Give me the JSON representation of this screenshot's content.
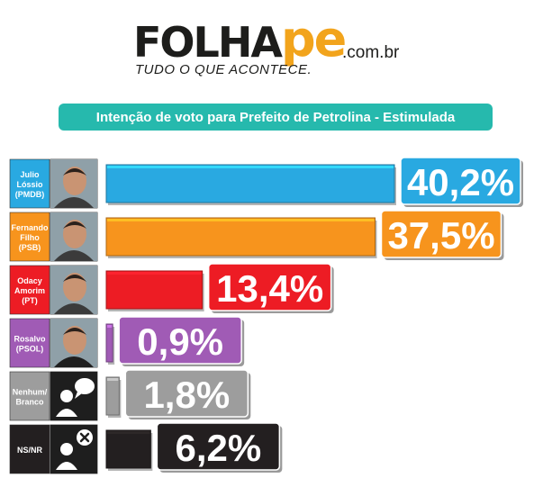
{
  "header": {
    "logo_main": "FOLHA",
    "logo_pe": "pe",
    "logo_domain": ".com.br",
    "logo_tagline": "TUDO O QUE ACONTECE."
  },
  "chart_data": {
    "type": "bar",
    "orientation": "horizontal",
    "title": "Intenção de voto para Prefeito de Petrolina - Estimulada",
    "categories": [
      "Julio Lóssio (PMDB)",
      "Fernando Filho (PSB)",
      "Odacy Amorim (PT)",
      "Rosalvo (PSOL)",
      "Nenhum/ Branco",
      "NS/NR"
    ],
    "category_lines": [
      [
        "Julio",
        "Lóssio",
        "(PMDB)"
      ],
      [
        "Fernando",
        "Filho",
        "(PSB)"
      ],
      [
        "Odacy",
        "Amorim",
        "(PT)"
      ],
      [
        "Rosalvo",
        "(PSOL)"
      ],
      [
        "Nenhum/",
        "Branco"
      ],
      [
        "NS/NR"
      ]
    ],
    "values": [
      40.2,
      37.5,
      13.4,
      0.9,
      1.8,
      6.2
    ],
    "value_labels": [
      "40,2%",
      "37,5%",
      "13,4%",
      "0,9%",
      "1,8%",
      "6,2%"
    ],
    "colors": [
      "#29a9e1",
      "#f7941d",
      "#ed1c24",
      "#a05bb5",
      "#9d9d9d",
      "#231f20"
    ],
    "icons": [
      "candidate-photo",
      "candidate-photo",
      "candidate-photo",
      "candidate-photo",
      "speech-bubble-person-icon",
      "x-person-icon"
    ],
    "unit": "%",
    "xlim": [
      0,
      40.2
    ],
    "grid": false,
    "legend": "none"
  }
}
